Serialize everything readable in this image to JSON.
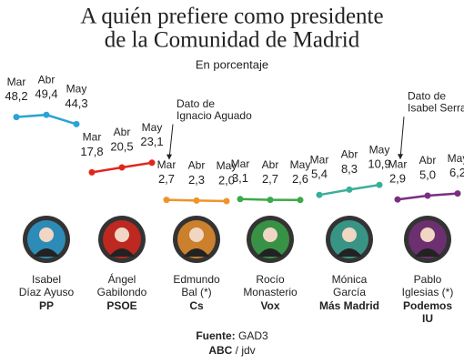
{
  "title": [
    "A quién prefiere como presidente",
    "de la Comunidad de Madrid"
  ],
  "subtitle": "En porcentaje",
  "source_label": "Fuente:",
  "source": "GAD3",
  "credit_label": "ABC",
  "credit": "/ jdv",
  "chart_data": [
    {
      "type": "line",
      "categories": [
        "Mar",
        "Abr",
        "May"
      ],
      "values": [
        48.2,
        49.4,
        44.3
      ],
      "value_labels": [
        "48,2",
        "49,4",
        "44,3"
      ],
      "color": "#2aa3d8",
      "ylim": [
        0,
        50
      ],
      "person": [
        "Isabel",
        "Díaz Ayuso"
      ],
      "party": [
        "PP"
      ]
    },
    {
      "type": "line",
      "categories": [
        "Mar",
        "Abr",
        "May"
      ],
      "values": [
        17.8,
        20.5,
        23.1
      ],
      "value_labels": [
        "17,8",
        "20,5",
        "23,1"
      ],
      "color": "#e0261b",
      "ylim": [
        0,
        50
      ],
      "person": [
        "Ángel",
        "Gabilondo"
      ],
      "party": [
        "PSOE"
      ]
    },
    {
      "type": "line",
      "categories": [
        "Mar",
        "Abr",
        "May"
      ],
      "values": [
        2.7,
        2.3,
        2.0
      ],
      "value_labels": [
        "2,7",
        "2,3",
        "2,0"
      ],
      "color": "#f0932a",
      "ylim": [
        0,
        50
      ],
      "person": [
        "Edmundo",
        "Bal (*)"
      ],
      "party": [
        "Cs"
      ],
      "annotation": [
        "Dato de",
        "Ignacio Aguado"
      ]
    },
    {
      "type": "line",
      "categories": [
        "Mar",
        "Abr",
        "May"
      ],
      "values": [
        3.1,
        2.7,
        2.6
      ],
      "value_labels": [
        "3,1",
        "2,7",
        "2,6"
      ],
      "color": "#3aaa4a",
      "ylim": [
        0,
        50
      ],
      "person": [
        "Rocío",
        "Monasterio"
      ],
      "party": [
        "Vox"
      ]
    },
    {
      "type": "line",
      "categories": [
        "Mar",
        "Abr",
        "May"
      ],
      "values": [
        5.4,
        8.3,
        10.9
      ],
      "value_labels": [
        "5,4",
        "8,3",
        "10,9"
      ],
      "color": "#3aae9a",
      "ylim": [
        0,
        50
      ],
      "person": [
        "Mónica",
        "García"
      ],
      "party": [
        "Más Madrid"
      ]
    },
    {
      "type": "line",
      "categories": [
        "Mar",
        "Abr",
        "May"
      ],
      "values": [
        2.9,
        5.0,
        6.2
      ],
      "value_labels": [
        "2,9",
        "5,0",
        "6,2"
      ],
      "color": "#7a2e7e",
      "ylim": [
        0,
        50
      ],
      "person": [
        "Pablo",
        "Iglesias (*)"
      ],
      "party": [
        "Podemos",
        "IU"
      ],
      "annotation": [
        "Dato de",
        "Isabel Serra"
      ]
    }
  ]
}
